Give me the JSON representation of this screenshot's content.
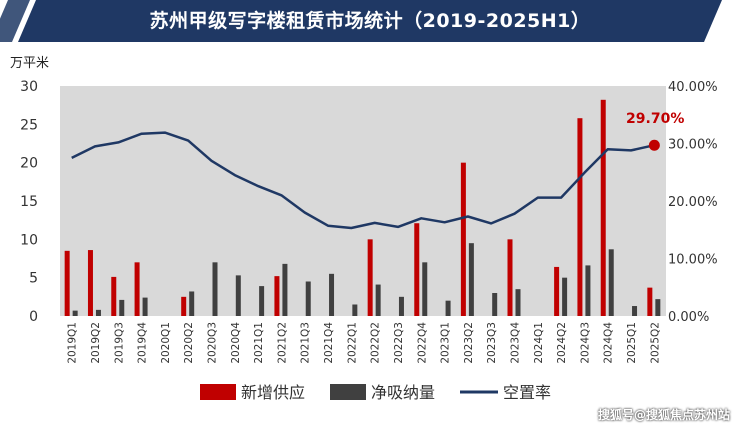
{
  "header": {
    "title": "苏州甲级写字楼租赁市场统计（2019-2025H1）"
  },
  "chart_data": {
    "type": "bar",
    "title": "苏州甲级写字楼租赁市场统计（2019-2025H1）",
    "ylabel": "万平米",
    "ylim": [
      0,
      30
    ],
    "y_ticks": [
      "0",
      "5",
      "10",
      "15",
      "20",
      "25",
      "30"
    ],
    "y2lim": [
      0,
      0.4
    ],
    "y2_ticks": [
      "0.00%",
      "10.00%",
      "20.00%",
      "30.00%",
      "40.00%"
    ],
    "grid": false,
    "legend_position": "bottom",
    "categories": [
      "2019Q1",
      "2019Q2",
      "2019Q3",
      "2019Q4",
      "2020Q1",
      "2020Q2",
      "2020Q3",
      "2020Q4",
      "2021Q1",
      "2021Q2",
      "2021Q3",
      "2021Q4",
      "2022Q1",
      "2022Q2",
      "2022Q3",
      "2022Q4",
      "2023Q1",
      "2023Q2",
      "2023Q3",
      "2023Q4",
      "2024Q1",
      "2024Q2",
      "2024Q3",
      "2024Q4",
      "2025Q1",
      "2025Q2"
    ],
    "series": [
      {
        "name": "新增供应",
        "type": "bar",
        "axis": "left",
        "color": "#c00000",
        "values": [
          8.5,
          8.6,
          5.1,
          7.0,
          0,
          2.5,
          0,
          0,
          0,
          5.2,
          0,
          0,
          0,
          10.0,
          0,
          12.1,
          0,
          20.0,
          0,
          10.0,
          0,
          6.4,
          25.8,
          28.2,
          0,
          3.7
        ]
      },
      {
        "name": "净吸纳量",
        "type": "bar",
        "axis": "left",
        "color": "#404040",
        "values": [
          0.7,
          0.8,
          2.1,
          2.4,
          0,
          3.2,
          7.0,
          5.3,
          3.9,
          6.8,
          4.5,
          5.5,
          1.5,
          4.1,
          2.5,
          7.0,
          2.0,
          9.5,
          3.0,
          3.5,
          0,
          5.0,
          6.6,
          8.7,
          1.3,
          2.2
        ]
      },
      {
        "name": "空置率",
        "type": "line",
        "axis": "right",
        "color": "#1f3864",
        "values": [
          0.275,
          0.295,
          0.302,
          0.317,
          0.319,
          0.305,
          0.27,
          0.245,
          0.226,
          0.21,
          0.18,
          0.157,
          0.153,
          0.162,
          0.155,
          0.17,
          0.163,
          0.173,
          0.161,
          0.178,
          0.206,
          0.206,
          0.249,
          0.29,
          0.288,
          0.297
        ]
      }
    ],
    "annotations": [
      {
        "text": "29.70%",
        "series": "空置率",
        "category": "2025Q2",
        "color": "#c00000"
      }
    ]
  },
  "watermark": "搜狐号@搜狐焦点苏州站"
}
